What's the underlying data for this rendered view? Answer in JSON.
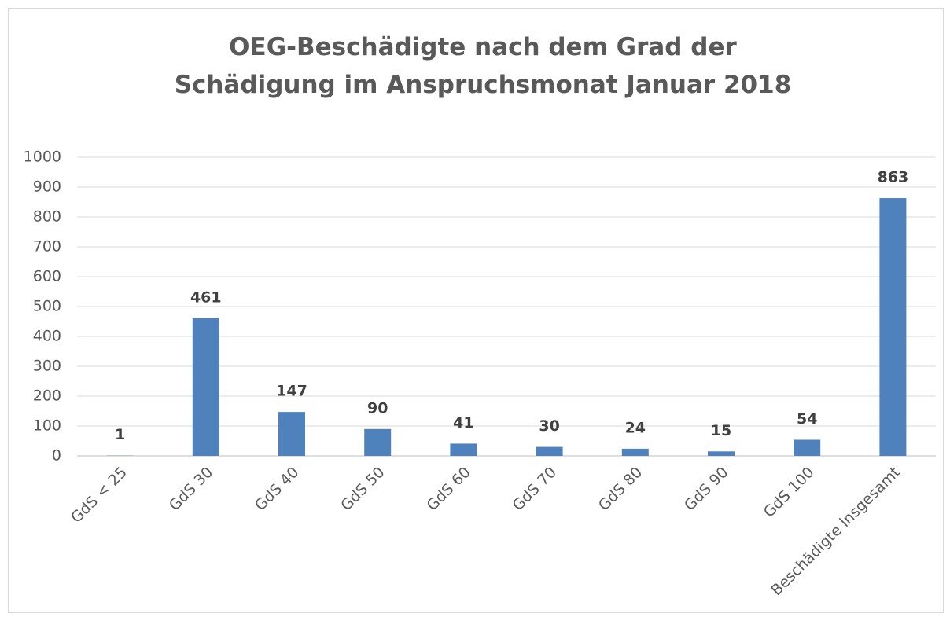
{
  "chart_data": {
    "type": "bar",
    "title": "OEG-Beschädigte nach dem Grad der Schädigung im Anspruchsmonat Januar 2018",
    "categories": [
      "GdS < 25",
      "GdS 30",
      "GdS 40",
      "GdS 50",
      "GdS 60",
      "GdS 70",
      "GdS 80",
      "GdS 90",
      "GdS 100",
      "Beschädigte insgesamt"
    ],
    "values": [
      1,
      461,
      147,
      90,
      41,
      30,
      24,
      15,
      54,
      863
    ],
    "color": "#4f81bd",
    "ylim": [
      0,
      1000
    ],
    "yticks": [
      0,
      100,
      200,
      300,
      400,
      500,
      600,
      700,
      800,
      900,
      1000
    ],
    "grid": true
  }
}
